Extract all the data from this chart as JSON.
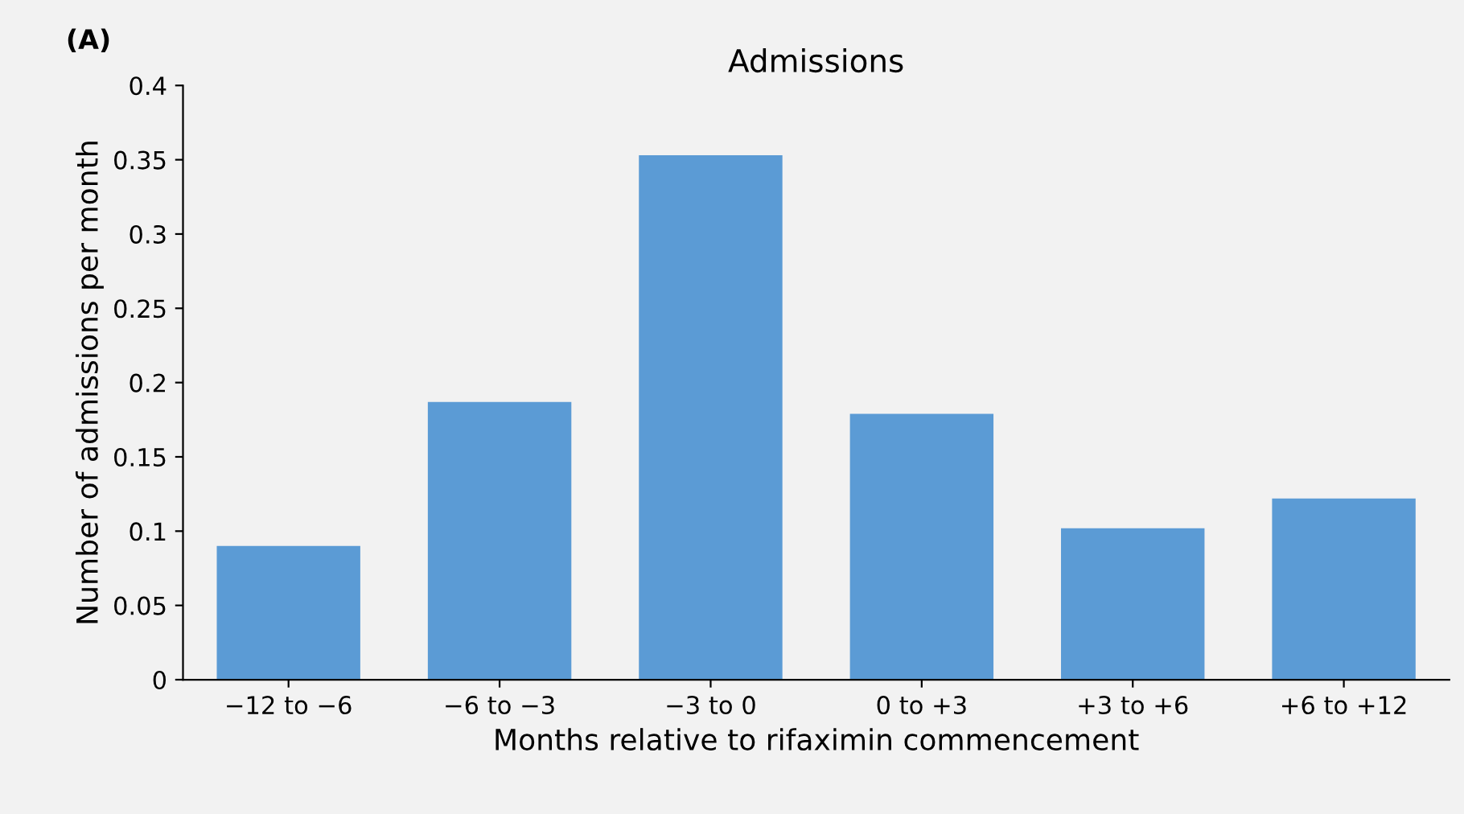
{
  "chart_data": {
    "type": "bar",
    "title": "Admissions",
    "xlabel": "Months relative to rifaximin commencement",
    "ylabel": "Number of admissions per month",
    "annotations": [
      "(A)"
    ],
    "categories": [
      "−12 to −6",
      "−6 to −3",
      "−3 to 0",
      "0 to +3",
      "+3 to +6",
      "+6 to +12"
    ],
    "values": [
      0.09,
      0.187,
      0.353,
      0.179,
      0.102,
      0.122
    ],
    "color": "#5b9bd5",
    "ylim": [
      0,
      0.4
    ],
    "yticks": [
      0,
      0.05,
      0.1,
      0.15,
      0.2,
      0.25,
      0.3,
      0.35,
      0.4
    ],
    "grid": false,
    "legend": false
  }
}
